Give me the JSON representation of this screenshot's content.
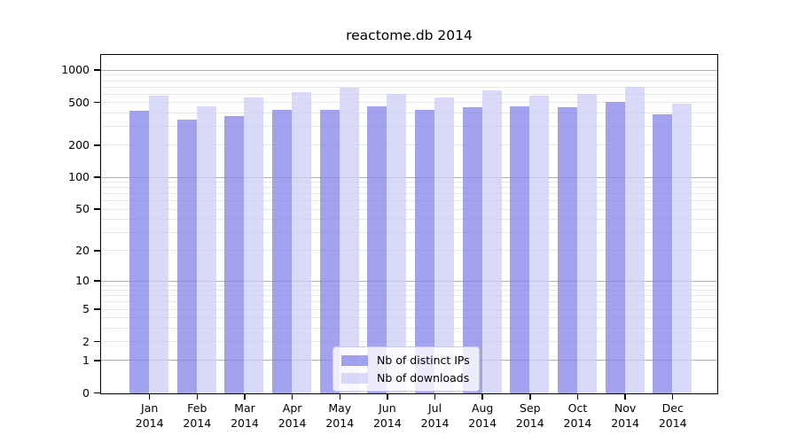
{
  "title": "reactome.db 2014",
  "chart_data": {
    "type": "bar",
    "title": "reactome.db 2014",
    "year": "2014",
    "categories": [
      "Jan",
      "Feb",
      "Mar",
      "Apr",
      "May",
      "Jun",
      "Jul",
      "Aug",
      "Sep",
      "Oct",
      "Nov",
      "Dec"
    ],
    "series": [
      {
        "name": "Nb of distinct IPs",
        "css_color": "rgba(131,131,234,0.75)",
        "hex_on_white": "#a2a2ef",
        "values": [
          420,
          350,
          380,
          430,
          430,
          470,
          430,
          460,
          465,
          455,
          510,
          395
        ]
      },
      {
        "name": "Nb of downloads",
        "css_color": "rgba(204,204,246,0.75)",
        "hex_on_white": "#d9d9f8",
        "values": [
          580,
          465,
          560,
          630,
          690,
          605,
          565,
          650,
          585,
          605,
          710,
          495
        ]
      }
    ],
    "y_axis": {
      "scale": "log10(value+1)",
      "ticks": [
        0,
        1,
        2,
        5,
        10,
        20,
        50,
        100,
        200,
        500,
        1000
      ],
      "ylim": [
        0,
        1440
      ]
    },
    "grid": {
      "on": true,
      "major": [
        1,
        10,
        100,
        1000
      ],
      "minor": [
        2,
        3,
        4,
        5,
        6,
        7,
        8,
        9,
        20,
        30,
        40,
        50,
        60,
        70,
        80,
        90,
        200,
        300,
        400,
        500,
        600,
        700,
        800,
        900
      ],
      "major_color": "#b0b0b0",
      "minor_color": "#e7e7e7"
    },
    "legend_position": "lower center"
  }
}
